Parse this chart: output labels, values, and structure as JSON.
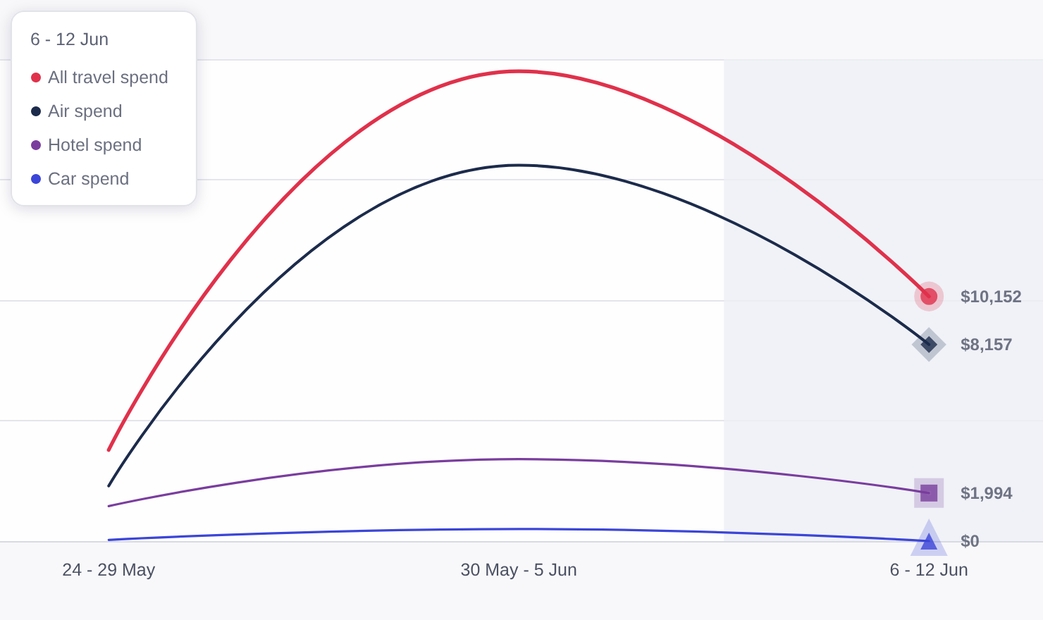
{
  "chart_data": {
    "type": "line",
    "categories": [
      "24 - 29 May",
      "30 May - 5 Jun",
      "6 - 12 Jun"
    ],
    "series": [
      {
        "name": "All travel spend",
        "color": "#e0314b",
        "values": [
          3780,
          19500,
          10152
        ]
      },
      {
        "name": "Air spend",
        "color": "#1c2b4b",
        "values": [
          2290,
          15600,
          8157
        ]
      },
      {
        "name": "Hotel spend",
        "color": "#7a3d9e",
        "values": [
          1450,
          3400,
          1994
        ]
      },
      {
        "name": "Car spend",
        "color": "#3b45d8",
        "values": [
          50,
          500,
          0
        ]
      },
      {
        "type": "scatter",
        "color": "#e0314b",
        "x": [
          "6 - 12 Jun"
        ],
        "values": [
          10152
        ],
        "value_labels": [
          "$10,152"
        ],
        "marker": "circle"
      },
      {
        "type": "scatter",
        "color": "#1c2b4b",
        "x": [
          "6 - 12 Jun"
        ],
        "values": [
          8157
        ],
        "value_labels": [
          "$8,157"
        ],
        "marker": "diamond"
      },
      {
        "type": "scatter",
        "color": "#7a3d9e",
        "x": [
          "6 - 12 Jun"
        ],
        "values": [
          1994
        ],
        "value_labels": [
          "$1,994"
        ],
        "marker": "square"
      },
      {
        "type": "scatter",
        "color": "#3b45d8",
        "x": [
          "6 - 12 Jun"
        ],
        "values": [
          0
        ],
        "value_labels": [
          "$0"
        ],
        "marker": "triangle"
      }
    ],
    "grid": "y",
    "tick_labels": "x",
    "legend": "top left",
    "legend_title": "6 - 12 Jun",
    "bands": [
      {
        "axis": "x",
        "from": "6 - 12 Jun",
        "to": "6 - 12 Jun",
        "color": "#eceff5"
      }
    ]
  }
}
